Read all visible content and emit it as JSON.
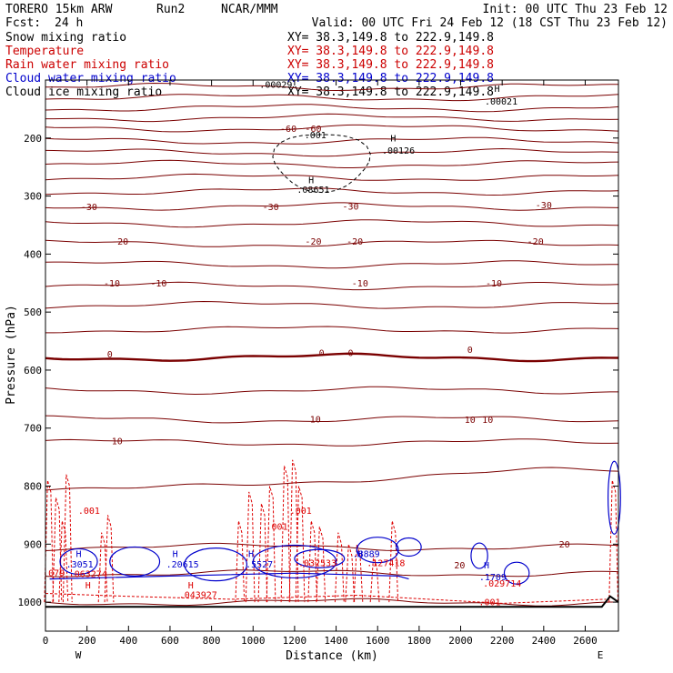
{
  "header": {
    "model": "TORERO  15km ARW",
    "run": "Run2",
    "org": "NCAR/MMM",
    "init": "Init: 00 UTC Thu 23 Feb 12",
    "fcst_label": "Fcst:",
    "fcst_value": "24 h",
    "valid": "Valid: 00 UTC Fri 24 Feb 12 (18 CST Thu 23 Feb 12)"
  },
  "fields": [
    {
      "label": "Snow mixing ratio",
      "xy": "XY=  38.3,149.8 to 222.9,149.8",
      "color": "#000000"
    },
    {
      "label": "Temperature",
      "xy": "XY=  38.3,149.8 to 222.9,149.8",
      "color": "#cc0000"
    },
    {
      "label": "Rain water mixing ratio",
      "xy": "XY=  38.3,149.8 to 222.9,149.8",
      "color": "#cc0000"
    },
    {
      "label": "Cloud water mixing ratio",
      "xy": "XY=  38.3,149.8 to 222.9,149.8",
      "color": "#0000cc"
    },
    {
      "label": "Cloud ice mixing ratio",
      "xy": "XY=  38.3,149.8 to 222.9,149.8",
      "color": "#000000"
    }
  ],
  "colors": {
    "temperature": "#7a0000",
    "rain": "#dd0000",
    "cloud": "#0000cc",
    "snow": "#000000"
  },
  "chart_data": {
    "type": "contour",
    "xlabel": "Distance (km)",
    "ylabel": "Pressure (hPa)",
    "xlim": [
      0,
      2760
    ],
    "ylim": [
      1050,
      100
    ],
    "xticks": [
      0,
      200,
      400,
      600,
      800,
      1000,
      1200,
      1400,
      1600,
      1800,
      2000,
      2200,
      2400,
      2600
    ],
    "yticks": [
      200,
      300,
      400,
      500,
      600,
      700,
      800,
      900,
      1000
    ],
    "x_end_labels": {
      "left": "W",
      "right": "E"
    },
    "temperature_levels": [
      {
        "p": 1000,
        "label": "20"
      },
      {
        "p": 950,
        "label": ""
      },
      {
        "p": 905,
        "label": "20"
      },
      {
        "p": 790,
        "label": ""
      },
      {
        "p": 725,
        "label": "10"
      },
      {
        "p": 685,
        "label": "10"
      },
      {
        "p": 635,
        "label": ""
      },
      {
        "p": 578,
        "label": "0"
      },
      {
        "p": 530,
        "label": ""
      },
      {
        "p": 488,
        "label": ""
      },
      {
        "p": 455,
        "label": "-10"
      },
      {
        "p": 418,
        "label": ""
      },
      {
        "p": 382,
        "label": "-20"
      },
      {
        "p": 347,
        "label": ""
      },
      {
        "p": 318,
        "label": "-30"
      },
      {
        "p": 292,
        "label": ""
      },
      {
        "p": 268,
        "label": ""
      },
      {
        "p": 245,
        "label": ""
      },
      {
        "p": 225,
        "label": ""
      },
      {
        "p": 205,
        "label": ""
      },
      {
        "p": 183,
        "label": "-60"
      },
      {
        "p": 165,
        "label": ""
      },
      {
        "p": 148,
        "label": ""
      },
      {
        "p": 130,
        "label": ""
      },
      {
        "p": 112,
        "label": ""
      }
    ],
    "annotations": [
      {
        "x": 1280,
        "p": 278,
        "text": "H",
        "kind": "snow"
      },
      {
        "x": 1290,
        "p": 294,
        "text": ".08651",
        "kind": "snow"
      },
      {
        "x": 1110,
        "p": 113,
        "text": ".00029",
        "kind": "snow"
      },
      {
        "x": 1300,
        "p": 200,
        "text": ".001",
        "kind": "snow"
      },
      {
        "x": 1675,
        "p": 206,
        "text": "H",
        "kind": "snow"
      },
      {
        "x": 1700,
        "p": 227,
        "text": ".00126",
        "kind": "snow"
      },
      {
        "x": 2175,
        "p": 120,
        "text": "H",
        "kind": "snow"
      },
      {
        "x": 2195,
        "p": 142,
        "text": ".00021",
        "kind": "snow"
      },
      {
        "x": 1170,
        "p": 189,
        "text": "-60",
        "kind": "temp"
      },
      {
        "x": 1290,
        "p": 189,
        "text": "-60",
        "kind": "temp"
      },
      {
        "x": 210,
        "p": 324,
        "text": "-30",
        "kind": "temp"
      },
      {
        "x": 1085,
        "p": 324,
        "text": "-30",
        "kind": "temp"
      },
      {
        "x": 1470,
        "p": 323,
        "text": "-30",
        "kind": "temp"
      },
      {
        "x": 2400,
        "p": 321,
        "text": "-30",
        "kind": "temp"
      },
      {
        "x": 360,
        "p": 384,
        "text": "-20",
        "kind": "temp"
      },
      {
        "x": 1290,
        "p": 384,
        "text": "-20",
        "kind": "temp"
      },
      {
        "x": 1490,
        "p": 384,
        "text": "-20",
        "kind": "temp"
      },
      {
        "x": 2360,
        "p": 384,
        "text": "-20",
        "kind": "temp"
      },
      {
        "x": 320,
        "p": 456,
        "text": "-10",
        "kind": "temp"
      },
      {
        "x": 545,
        "p": 456,
        "text": "-10",
        "kind": "temp"
      },
      {
        "x": 1515,
        "p": 456,
        "text": "-10",
        "kind": "temp"
      },
      {
        "x": 2160,
        "p": 456,
        "text": "-10",
        "kind": "temp"
      },
      {
        "x": 310,
        "p": 578,
        "text": "0",
        "kind": "temp"
      },
      {
        "x": 1330,
        "p": 576,
        "text": "0",
        "kind": "temp"
      },
      {
        "x": 1470,
        "p": 576,
        "text": "0",
        "kind": "temp"
      },
      {
        "x": 2045,
        "p": 570,
        "text": "0",
        "kind": "temp"
      },
      {
        "x": 345,
        "p": 728,
        "text": "10",
        "kind": "temp"
      },
      {
        "x": 1300,
        "p": 690,
        "text": "10",
        "kind": "temp"
      },
      {
        "x": 2045,
        "p": 691,
        "text": "10",
        "kind": "temp"
      },
      {
        "x": 2130,
        "p": 691,
        "text": "10",
        "kind": "temp"
      },
      {
        "x": 1995,
        "p": 942,
        "text": "20",
        "kind": "temp"
      },
      {
        "x": 2500,
        "p": 906,
        "text": "20",
        "kind": "temp"
      },
      {
        "x": 210,
        "p": 848,
        "text": ".001",
        "kind": "rain"
      },
      {
        "x": 1115,
        "p": 875,
        "text": ".001",
        "kind": "rain"
      },
      {
        "x": 1230,
        "p": 848,
        "text": ".001",
        "kind": "rain"
      },
      {
        "x": 2140,
        "p": 1005,
        "text": ".001",
        "kind": "rain"
      },
      {
        "x": 205,
        "p": 957,
        "text": ".063274",
        "kind": "rain"
      },
      {
        "x": 735,
        "p": 993,
        "text": ".043927",
        "kind": "rain"
      },
      {
        "x": 1310,
        "p": 938,
        "text": ".032533",
        "kind": "rain"
      },
      {
        "x": 1640,
        "p": 938,
        "text": ".127418",
        "kind": "rain"
      },
      {
        "x": 2200,
        "p": 973,
        "text": ".029714",
        "kind": "rain"
      },
      {
        "x": 40,
        "p": 955,
        "text": ".079",
        "kind": "rain"
      },
      {
        "x": 205,
        "p": 976,
        "text": "H",
        "kind": "rain"
      },
      {
        "x": 700,
        "p": 976,
        "text": "H",
        "kind": "rain"
      },
      {
        "x": 160,
        "p": 922,
        "text": "H",
        "kind": "cloud"
      },
      {
        "x": 165,
        "p": 940,
        "text": ".3051",
        "kind": "cloud"
      },
      {
        "x": 625,
        "p": 922,
        "text": "H",
        "kind": "cloud"
      },
      {
        "x": 660,
        "p": 940,
        "text": ".20615",
        "kind": "cloud"
      },
      {
        "x": 990,
        "p": 922,
        "text": "H",
        "kind": "cloud"
      },
      {
        "x": 1030,
        "p": 940,
        "text": ".5527",
        "kind": "cloud"
      },
      {
        "x": 1515,
        "p": 922,
        "text": "H",
        "kind": "cloud"
      },
      {
        "x": 1545,
        "p": 922,
        "text": ".8889",
        "kind": "cloud"
      },
      {
        "x": 2125,
        "p": 942,
        "text": "H",
        "kind": "cloud"
      },
      {
        "x": 2155,
        "p": 962,
        "text": ".1709",
        "kind": "cloud"
      }
    ]
  }
}
